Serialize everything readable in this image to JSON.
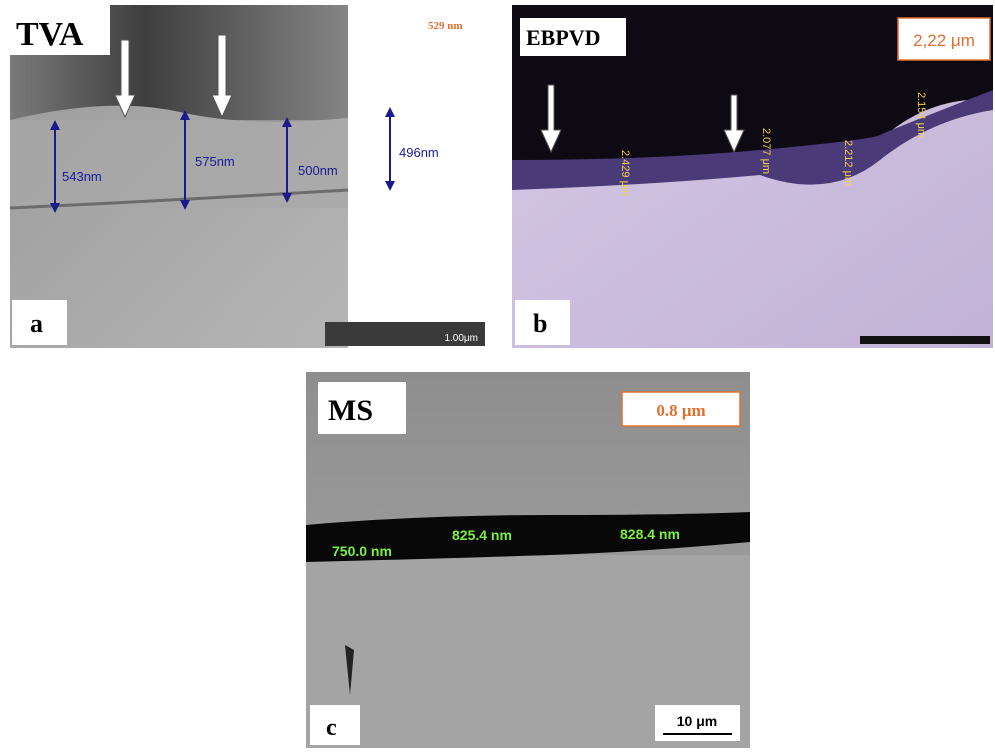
{
  "panels": [
    {
      "method": "TVA",
      "thickness": "529 nm",
      "measurements": [
        "543nm",
        "575nm",
        "500nm",
        "496nm"
      ],
      "scale_bar": "1.00μm",
      "letter": "a"
    },
    {
      "method": "EBPVD",
      "thickness": "2,22 μm",
      "measurements": [
        "2.429 μm",
        "2.077 μm",
        "2.212 μm",
        "2.154 μm"
      ],
      "letter": "b"
    },
    {
      "method": "MS",
      "thickness": "0.8 μm",
      "measurements": [
        "750.0 nm",
        "825.4 nm",
        "828.4 nm"
      ],
      "scale_bar": "10 μm",
      "letter": "c"
    }
  ]
}
